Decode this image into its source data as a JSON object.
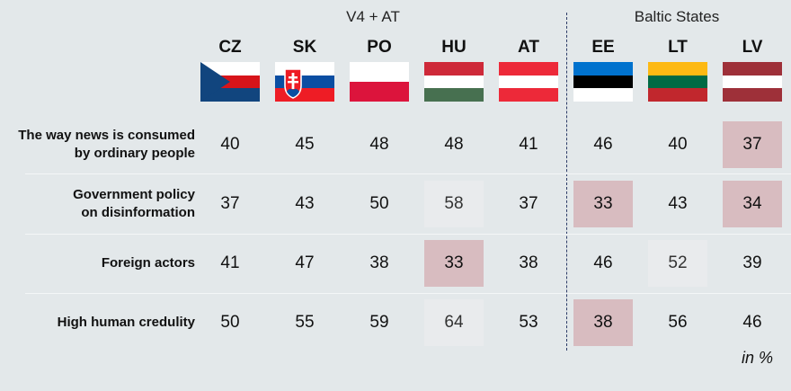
{
  "chart_data": {
    "type": "table",
    "groups": [
      {
        "label": "V4 + AT",
        "countries": [
          "CZ",
          "SK",
          "PO",
          "HU",
          "AT"
        ]
      },
      {
        "label": "Baltic States",
        "countries": [
          "EE",
          "LT",
          "LV"
        ]
      }
    ],
    "columns": [
      "CZ",
      "SK",
      "PO",
      "HU",
      "AT",
      "EE",
      "LT",
      "LV"
    ],
    "rows": [
      {
        "label_lines": [
          "The way news is consumed",
          "by ordinary people"
        ],
        "values": [
          40,
          45,
          48,
          48,
          41,
          46,
          40,
          37
        ]
      },
      {
        "label_lines": [
          "Government policy",
          "on disinformation"
        ],
        "values": [
          37,
          43,
          50,
          58,
          37,
          33,
          43,
          34
        ]
      },
      {
        "label_lines": [
          "Foreign actors"
        ],
        "values": [
          41,
          47,
          38,
          33,
          38,
          46,
          52,
          39
        ]
      },
      {
        "label_lines": [
          "High human credulity"
        ],
        "values": [
          50,
          55,
          59,
          64,
          53,
          38,
          56,
          46
        ]
      }
    ],
    "highlight_low": [
      [
        0,
        7
      ],
      [
        1,
        5
      ],
      [
        1,
        7
      ],
      [
        2,
        3
      ],
      [
        3,
        5
      ]
    ],
    "highlight_high": [
      [
        1,
        3
      ],
      [
        2,
        6
      ],
      [
        3,
        3
      ]
    ],
    "unit": "in %"
  },
  "flags": {
    "CZ": {
      "colors": [
        "#ffffff",
        "#d7141a",
        "#11457e"
      ]
    },
    "SK": {
      "colors": [
        "#ffffff",
        "#0b4ea2",
        "#ee1c25"
      ]
    },
    "PO": {
      "colors": [
        "#ffffff",
        "#dc143c"
      ]
    },
    "HU": {
      "colors": [
        "#ce2939",
        "#ffffff",
        "#477050"
      ]
    },
    "AT": {
      "colors": [
        "#ed2939",
        "#ffffff",
        "#ed2939"
      ]
    },
    "EE": {
      "colors": [
        "#0072ce",
        "#000000",
        "#ffffff"
      ]
    },
    "LT": {
      "colors": [
        "#fdb913",
        "#006a44",
        "#c1272d"
      ]
    },
    "LV": {
      "colors": [
        "#9e3039",
        "#ffffff",
        "#9e3039"
      ]
    }
  },
  "colors": {
    "background": "#e3e8ea",
    "highlight_low": "#d8bcc0",
    "highlight_high": "#e9ebed",
    "divider": "#2b3a66"
  }
}
